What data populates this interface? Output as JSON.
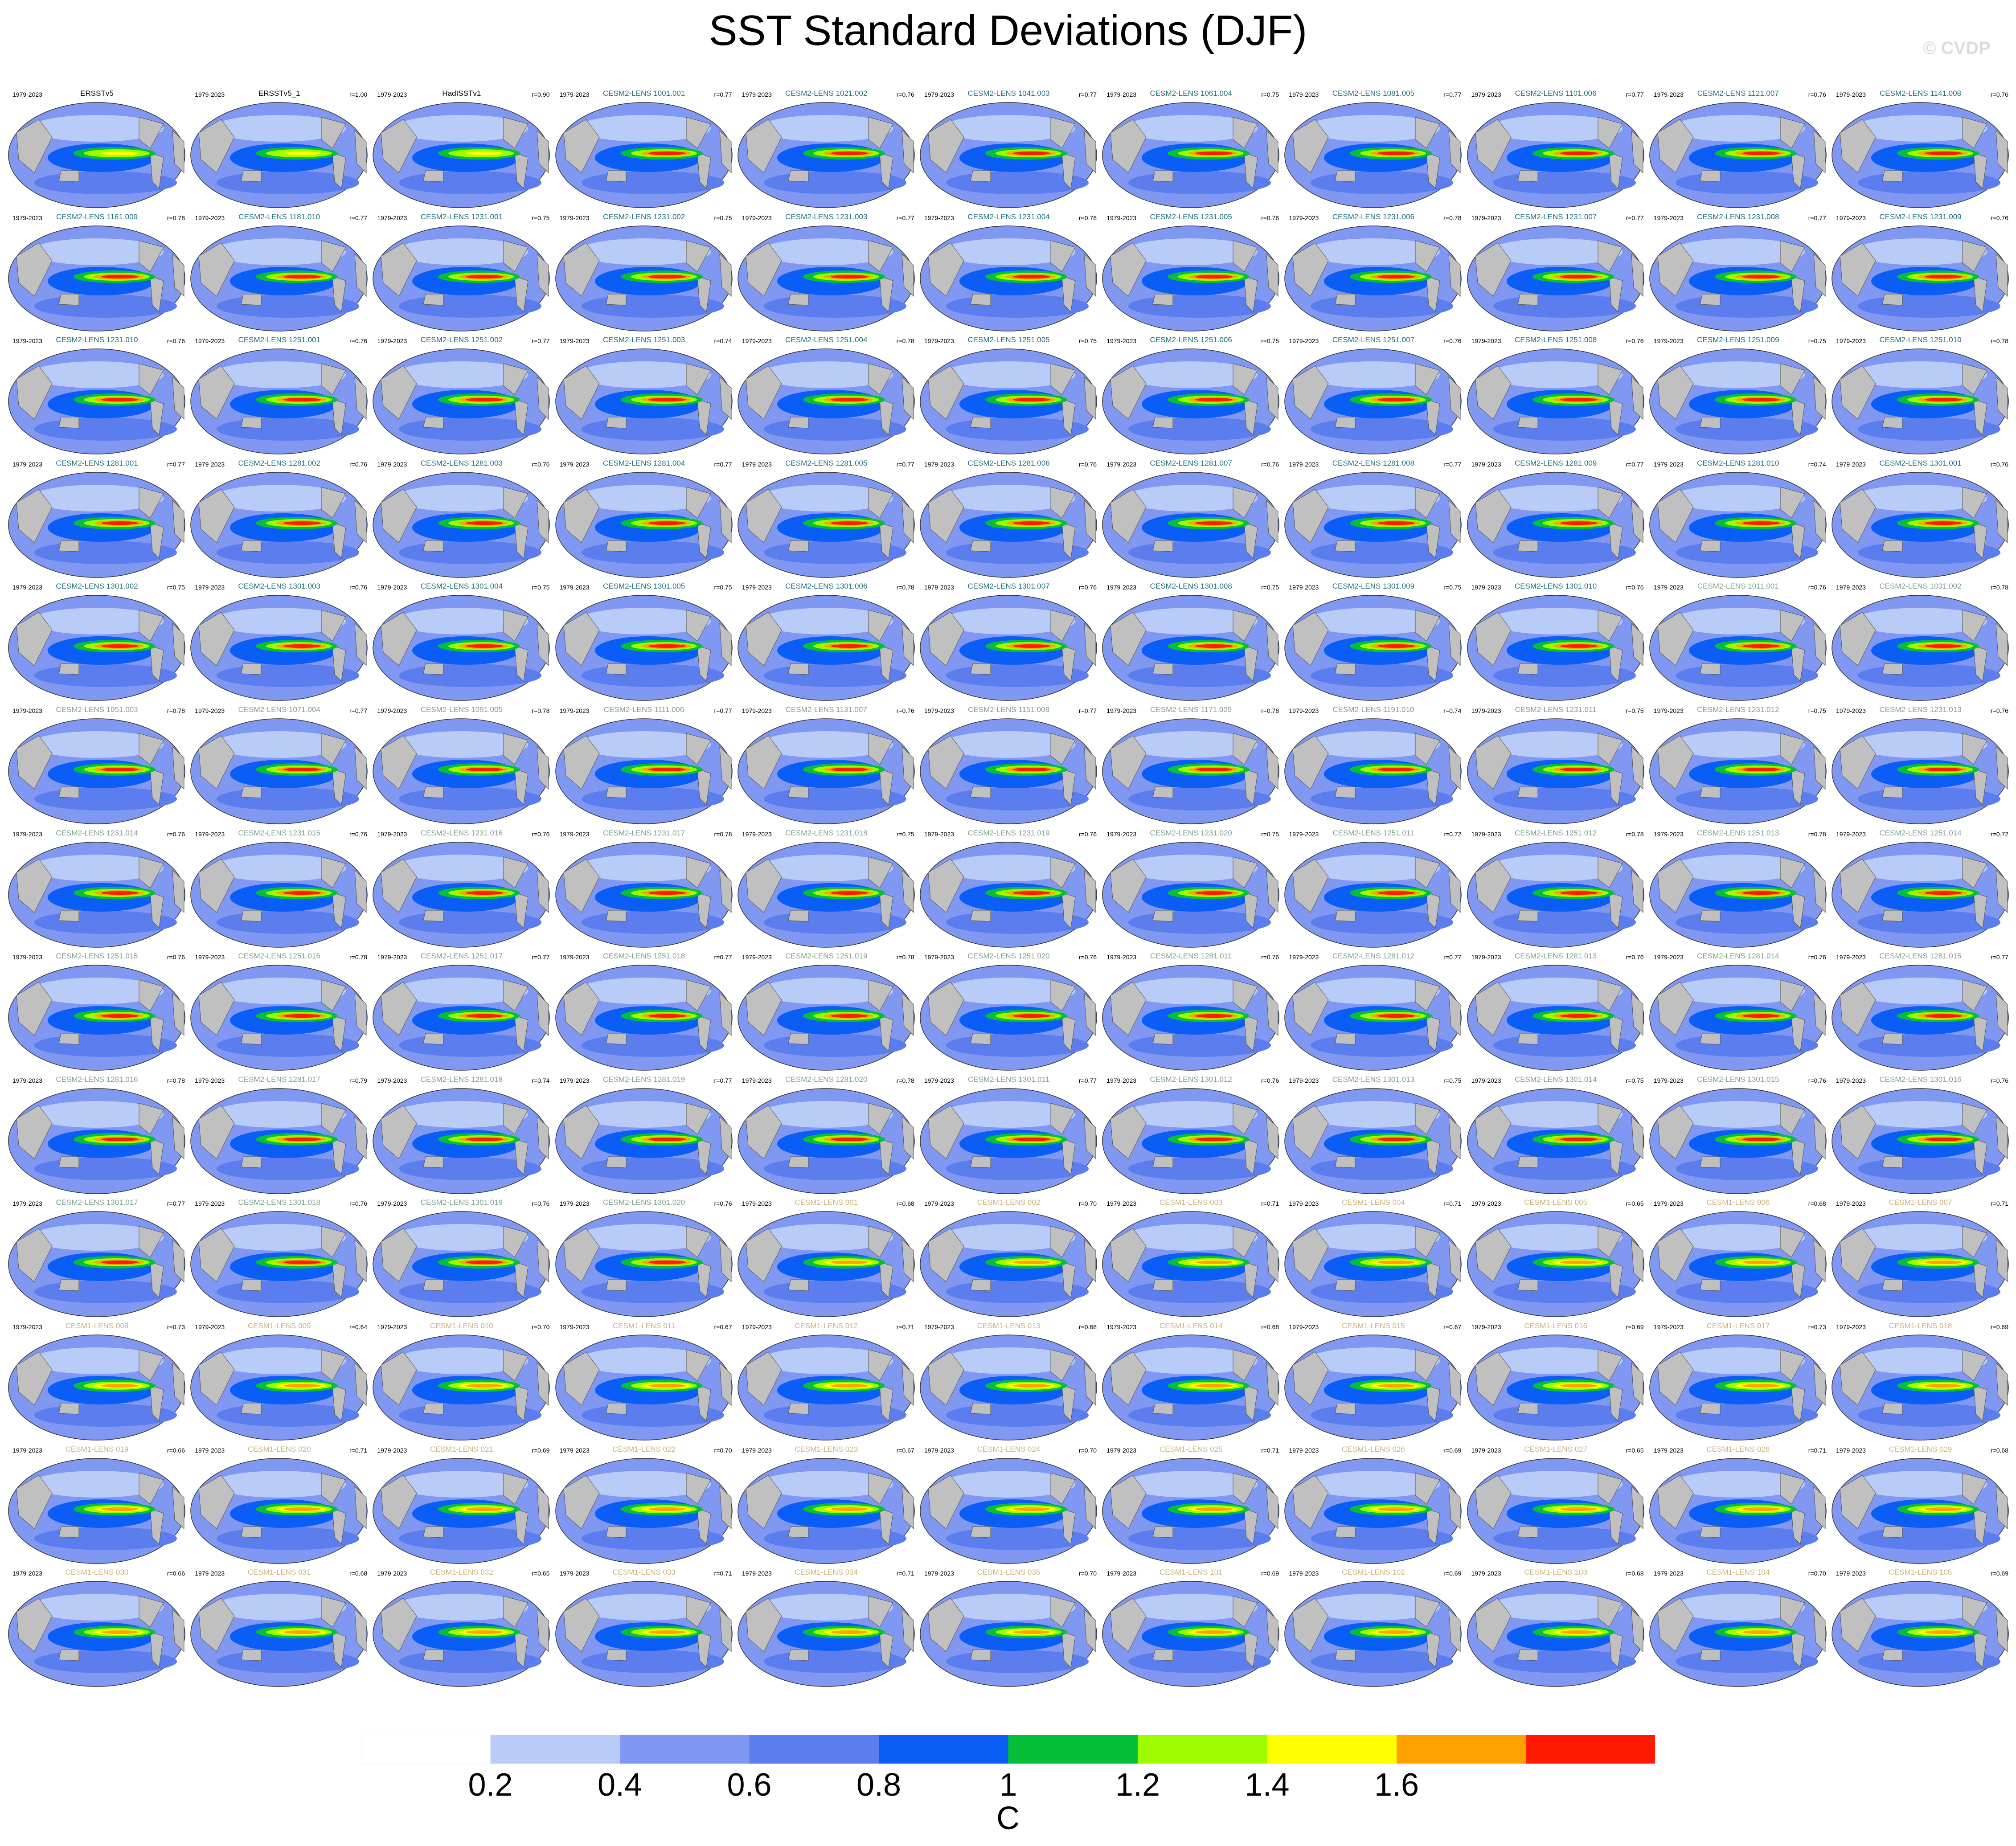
{
  "title": "SST Standard Deviations (DJF)",
  "watermark": "© CVDP",
  "units": "C",
  "colorbar": {
    "colors": [
      "#ffffff",
      "#b9cbf7",
      "#8198f3",
      "#5b7ded",
      "#0a5ef5",
      "#04bf37",
      "#9dfc00",
      "#ffff00",
      "#ffa200",
      "#ff1a00"
    ],
    "tick_labels": [
      "0.2",
      "0.4",
      "0.6",
      "0.8",
      "1",
      "1.2",
      "1.4",
      "1.6"
    ]
  },
  "colors": {
    "obs": "#000000",
    "cesm2": "#1f6f80",
    "cesm2_late": "#7fa08c",
    "cesm1": "#c8b27a",
    "land": "#c0c0c0"
  },
  "panels": [
    {
      "name": "ERSSTv5",
      "period": "1979-2023",
      "r": "",
      "group": "obs"
    },
    {
      "name": "ERSSTv5_1",
      "period": "1979-2023",
      "r": "r=1.00",
      "group": "obs"
    },
    {
      "name": "HadISSTv1",
      "period": "1979-2023",
      "r": "r=0.90",
      "group": "obs"
    },
    {
      "name": "CESM2-LENS 1001.001",
      "period": "1979-2023",
      "r": "r=0.77",
      "group": "cesm2"
    },
    {
      "name": "CESM2-LENS 1021.002",
      "period": "1979-2023",
      "r": "r=0.76",
      "group": "cesm2"
    },
    {
      "name": "CESM2-LENS 1041.003",
      "period": "1979-2023",
      "r": "r=0.77",
      "group": "cesm2"
    },
    {
      "name": "CESM2-LENS 1061.004",
      "period": "1979-2023",
      "r": "r=0.75",
      "group": "cesm2"
    },
    {
      "name": "CESM2-LENS 1081.005",
      "period": "1979-2023",
      "r": "r=0.77",
      "group": "cesm2"
    },
    {
      "name": "CESM2-LENS 1101.006",
      "period": "1979-2023",
      "r": "r=0.77",
      "group": "cesm2"
    },
    {
      "name": "CESM2-LENS 1121.007",
      "period": "1979-2023",
      "r": "r=0.76",
      "group": "cesm2"
    },
    {
      "name": "CESM2-LENS 1141.008",
      "period": "1979-2023",
      "r": "r=0.76",
      "group": "cesm2"
    },
    {
      "name": "CESM2-LENS 1161.009",
      "period": "1979-2023",
      "r": "r=0.78",
      "group": "cesm2"
    },
    {
      "name": "CESM2-LENS 1181.010",
      "period": "1979-2023",
      "r": "r=0.77",
      "group": "cesm2"
    },
    {
      "name": "CESM2-LENS 1231.001",
      "period": "1979-2023",
      "r": "r=0.75",
      "group": "cesm2"
    },
    {
      "name": "CESM2-LENS 1231.002",
      "period": "1979-2023",
      "r": "r=0.75",
      "group": "cesm2"
    },
    {
      "name": "CESM2-LENS 1231.003",
      "period": "1979-2023",
      "r": "r=0.77",
      "group": "cesm2"
    },
    {
      "name": "CESM2-LENS 1231.004",
      "period": "1979-2023",
      "r": "r=0.78",
      "group": "cesm2"
    },
    {
      "name": "CESM2-LENS 1231.005",
      "period": "1979-2023",
      "r": "r=0.76",
      "group": "cesm2"
    },
    {
      "name": "CESM2-LENS 1231.006",
      "period": "1979-2023",
      "r": "r=0.78",
      "group": "cesm2"
    },
    {
      "name": "CESM2-LENS 1231.007",
      "period": "1979-2023",
      "r": "r=0.77",
      "group": "cesm2"
    },
    {
      "name": "CESM2-LENS 1231.008",
      "period": "1979-2023",
      "r": "r=0.77",
      "group": "cesm2"
    },
    {
      "name": "CESM2-LENS 1231.009",
      "period": "1979-2023",
      "r": "r=0.76",
      "group": "cesm2"
    },
    {
      "name": "CESM2-LENS 1231.010",
      "period": "1979-2023",
      "r": "r=0.76",
      "group": "cesm2"
    },
    {
      "name": "CESM2-LENS 1251.001",
      "period": "1979-2023",
      "r": "r=0.76",
      "group": "cesm2"
    },
    {
      "name": "CESM2-LENS 1251.002",
      "period": "1979-2023",
      "r": "r=0.77",
      "group": "cesm2"
    },
    {
      "name": "CESM2-LENS 1251.003",
      "period": "1979-2023",
      "r": "r=0.74",
      "group": "cesm2"
    },
    {
      "name": "CESM2-LENS 1251.004",
      "period": "1979-2023",
      "r": "r=0.78",
      "group": "cesm2"
    },
    {
      "name": "CESM2-LENS 1251.005",
      "period": "1979-2023",
      "r": "r=0.75",
      "group": "cesm2"
    },
    {
      "name": "CESM2-LENS 1251.006",
      "period": "1979-2023",
      "r": "r=0.75",
      "group": "cesm2"
    },
    {
      "name": "CESM2-LENS 1251.007",
      "period": "1979-2023",
      "r": "r=0.76",
      "group": "cesm2"
    },
    {
      "name": "CESM2-LENS 1251.008",
      "period": "1979-2023",
      "r": "r=0.76",
      "group": "cesm2"
    },
    {
      "name": "CESM2-LENS 1251.009",
      "period": "1979-2023",
      "r": "r=0.75",
      "group": "cesm2"
    },
    {
      "name": "CESM2-LENS 1251.010",
      "period": "1979-2023",
      "r": "r=0.78",
      "group": "cesm2"
    },
    {
      "name": "CESM2-LENS 1281.001",
      "period": "1979-2023",
      "r": "r=0.77",
      "group": "cesm2"
    },
    {
      "name": "CESM2-LENS 1281.002",
      "period": "1979-2023",
      "r": "r=0.76",
      "group": "cesm2"
    },
    {
      "name": "CESM2-LENS 1281.003",
      "period": "1979-2023",
      "r": "r=0.76",
      "group": "cesm2"
    },
    {
      "name": "CESM2-LENS 1281.004",
      "period": "1979-2023",
      "r": "r=0.77",
      "group": "cesm2"
    },
    {
      "name": "CESM2-LENS 1281.005",
      "period": "1979-2023",
      "r": "r=0.77",
      "group": "cesm2"
    },
    {
      "name": "CESM2-LENS 1281.006",
      "period": "1979-2023",
      "r": "r=0.76",
      "group": "cesm2"
    },
    {
      "name": "CESM2-LENS 1281.007",
      "period": "1979-2023",
      "r": "r=0.76",
      "group": "cesm2"
    },
    {
      "name": "CESM2-LENS 1281.008",
      "period": "1979-2023",
      "r": "r=0.77",
      "group": "cesm2"
    },
    {
      "name": "CESM2-LENS 1281.009",
      "period": "1979-2023",
      "r": "r=0.77",
      "group": "cesm2"
    },
    {
      "name": "CESM2-LENS 1281.010",
      "period": "1979-2023",
      "r": "r=0.74",
      "group": "cesm2"
    },
    {
      "name": "CESM2-LENS 1301.001",
      "period": "1979-2023",
      "r": "r=0.76",
      "group": "cesm2"
    },
    {
      "name": "CESM2-LENS 1301.002",
      "period": "1979-2023",
      "r": "r=0.75",
      "group": "cesm2"
    },
    {
      "name": "CESM2-LENS 1301.003",
      "period": "1979-2023",
      "r": "r=0.76",
      "group": "cesm2"
    },
    {
      "name": "CESM2-LENS 1301.004",
      "period": "1979-2023",
      "r": "r=0.75",
      "group": "cesm2"
    },
    {
      "name": "CESM2-LENS 1301.005",
      "period": "1979-2023",
      "r": "r=0.75",
      "group": "cesm2"
    },
    {
      "name": "CESM2-LENS 1301.006",
      "period": "1979-2023",
      "r": "r=0.78",
      "group": "cesm2"
    },
    {
      "name": "CESM2-LENS 1301.007",
      "period": "1979-2023",
      "r": "r=0.76",
      "group": "cesm2"
    },
    {
      "name": "CESM2-LENS 1301.008",
      "period": "1979-2023",
      "r": "r=0.75",
      "group": "cesm2"
    },
    {
      "name": "CESM2-LENS 1301.009",
      "period": "1979-2023",
      "r": "r=0.75",
      "group": "cesm2"
    },
    {
      "name": "CESM2-LENS 1301.010",
      "period": "1979-2023",
      "r": "r=0.76",
      "group": "cesm2"
    },
    {
      "name": "CESM2-LENS 1011.001",
      "period": "1979-2023",
      "r": "r=0.76",
      "group": "cesm2_late"
    },
    {
      "name": "CESM2-LENS 1031.002",
      "period": "1979-2023",
      "r": "r=0.78",
      "group": "cesm2_late"
    },
    {
      "name": "CESM2-LENS 1051.003",
      "period": "1979-2023",
      "r": "r=0.78",
      "group": "cesm2_late"
    },
    {
      "name": "CESM2-LENS 1071.004",
      "period": "1979-2023",
      "r": "r=0.77",
      "group": "cesm2_late"
    },
    {
      "name": "CESM2-LENS 1091.005",
      "period": "1979-2023",
      "r": "r=0.78",
      "group": "cesm2_late"
    },
    {
      "name": "CESM2-LENS 1111.006",
      "period": "1979-2023",
      "r": "r=0.77",
      "group": "cesm2_late"
    },
    {
      "name": "CESM2-LENS 1131.007",
      "period": "1979-2023",
      "r": "r=0.76",
      "group": "cesm2_late"
    },
    {
      "name": "CESM2-LENS 1151.008",
      "period": "1979-2023",
      "r": "r=0.77",
      "group": "cesm2_late"
    },
    {
      "name": "CESM2-LENS 1171.009",
      "period": "1979-2023",
      "r": "r=0.78",
      "group": "cesm2_late"
    },
    {
      "name": "CESM2-LENS 1191.010",
      "period": "1979-2023",
      "r": "r=0.74",
      "group": "cesm2_late"
    },
    {
      "name": "CESM2-LENS 1231.011",
      "period": "1979-2023",
      "r": "r=0.75",
      "group": "cesm2_late"
    },
    {
      "name": "CESM2-LENS 1231.012",
      "period": "1979-2023",
      "r": "r=0.75",
      "group": "cesm2_late"
    },
    {
      "name": "CESM2-LENS 1231.013",
      "period": "1979-2023",
      "r": "r=0.76",
      "group": "cesm2_late"
    },
    {
      "name": "CESM2-LENS 1231.014",
      "period": "1979-2023",
      "r": "r=0.76",
      "group": "cesm2_late"
    },
    {
      "name": "CESM2-LENS 1231.015",
      "period": "1979-2023",
      "r": "r=0.76",
      "group": "cesm2_late"
    },
    {
      "name": "CESM2-LENS 1231.016",
      "period": "1979-2023",
      "r": "r=0.76",
      "group": "cesm2_late"
    },
    {
      "name": "CESM2-LENS 1231.017",
      "period": "1979-2023",
      "r": "r=0.78",
      "group": "cesm2_late"
    },
    {
      "name": "CESM2-LENS 1231.018",
      "period": "1979-2023",
      "r": "r=0.75",
      "group": "cesm2_late"
    },
    {
      "name": "CESM2-LENS 1231.019",
      "period": "1979-2023",
      "r": "r=0.76",
      "group": "cesm2_late"
    },
    {
      "name": "CESM2-LENS 1231.020",
      "period": "1979-2023",
      "r": "r=0.75",
      "group": "cesm2_late"
    },
    {
      "name": "CESM2-LENS 1251.011",
      "period": "1979-2023",
      "r": "r=0.72",
      "group": "cesm2_late"
    },
    {
      "name": "CESM2-LENS 1251.012",
      "period": "1979-2023",
      "r": "r=0.78",
      "group": "cesm2_late"
    },
    {
      "name": "CESM2-LENS 1251.013",
      "period": "1979-2023",
      "r": "r=0.78",
      "group": "cesm2_late"
    },
    {
      "name": "CESM2-LENS 1251.014",
      "period": "1979-2023",
      "r": "r=0.72",
      "group": "cesm2_late"
    },
    {
      "name": "CESM2-LENS 1251.015",
      "period": "1979-2023",
      "r": "r=0.76",
      "group": "cesm2_late"
    },
    {
      "name": "CESM2-LENS 1251.016",
      "period": "1979-2023",
      "r": "r=0.78",
      "group": "cesm2_late"
    },
    {
      "name": "CESM2-LENS 1251.017",
      "period": "1979-2023",
      "r": "r=0.77",
      "group": "cesm2_late"
    },
    {
      "name": "CESM2-LENS 1251.018",
      "period": "1979-2023",
      "r": "r=0.77",
      "group": "cesm2_late"
    },
    {
      "name": "CESM2-LENS 1251.019",
      "period": "1979-2023",
      "r": "r=0.78",
      "group": "cesm2_late"
    },
    {
      "name": "CESM2-LENS 1251.020",
      "period": "1979-2023",
      "r": "r=0.76",
      "group": "cesm2_late"
    },
    {
      "name": "CESM2-LENS 1281.011",
      "period": "1979-2023",
      "r": "r=0.76",
      "group": "cesm2_late"
    },
    {
      "name": "CESM2-LENS 1281.012",
      "period": "1979-2023",
      "r": "r=0.77",
      "group": "cesm2_late"
    },
    {
      "name": "CESM2-LENS 1281.013",
      "period": "1979-2023",
      "r": "r=0.76",
      "group": "cesm2_late"
    },
    {
      "name": "CESM2-LENS 1281.014",
      "period": "1979-2023",
      "r": "r=0.76",
      "group": "cesm2_late"
    },
    {
      "name": "CESM2-LENS 1281.015",
      "period": "1979-2023",
      "r": "r=0.77",
      "group": "cesm2_late"
    },
    {
      "name": "CESM2-LENS 1281.016",
      "period": "1979-2023",
      "r": "r=0.78",
      "group": "cesm2_late"
    },
    {
      "name": "CESM2-LENS 1281.017",
      "period": "1979-2023",
      "r": "r=0.79",
      "group": "cesm2_late"
    },
    {
      "name": "CESM2-LENS 1281.018",
      "period": "1979-2023",
      "r": "r=0.74",
      "group": "cesm2_late"
    },
    {
      "name": "CESM2-LENS 1281.019",
      "period": "1979-2023",
      "r": "r=0.77",
      "group": "cesm2_late"
    },
    {
      "name": "CESM2-LENS 1281.020",
      "period": "1979-2023",
      "r": "r=0.78",
      "group": "cesm2_late"
    },
    {
      "name": "CESM2-LENS 1301.011",
      "period": "1979-2023",
      "r": "r=0.77",
      "group": "cesm2_late"
    },
    {
      "name": "CESM2-LENS 1301.012",
      "period": "1979-2023",
      "r": "r=0.76",
      "group": "cesm2_late"
    },
    {
      "name": "CESM2-LENS 1301.013",
      "period": "1979-2023",
      "r": "r=0.75",
      "group": "cesm2_late"
    },
    {
      "name": "CESM2-LENS 1301.014",
      "period": "1979-2023",
      "r": "r=0.75",
      "group": "cesm2_late"
    },
    {
      "name": "CESM2-LENS 1301.015",
      "period": "1979-2023",
      "r": "r=0.76",
      "group": "cesm2_late"
    },
    {
      "name": "CESM2-LENS 1301.016",
      "period": "1979-2023",
      "r": "r=0.76",
      "group": "cesm2_late"
    },
    {
      "name": "CESM2-LENS 1301.017",
      "period": "1979-2023",
      "r": "r=0.77",
      "group": "cesm2_late"
    },
    {
      "name": "CESM2-LENS 1301.018",
      "period": "1979-2023",
      "r": "r=0.76",
      "group": "cesm2_late"
    },
    {
      "name": "CESM2-LENS 1301.019",
      "period": "1979-2023",
      "r": "r=0.76",
      "group": "cesm2_late"
    },
    {
      "name": "CESM2-LENS 1301.020",
      "period": "1979-2023",
      "r": "r=0.76",
      "group": "cesm2_late"
    },
    {
      "name": "CESM1-LENS 001",
      "period": "1979-2023",
      "r": "r=0.68",
      "group": "cesm1"
    },
    {
      "name": "CESM1-LENS 002",
      "period": "1979-2023",
      "r": "r=0.70",
      "group": "cesm1"
    },
    {
      "name": "CESM1-LENS 003",
      "period": "1979-2023",
      "r": "r=0.71",
      "group": "cesm1"
    },
    {
      "name": "CESM1-LENS 004",
      "period": "1979-2023",
      "r": "r=0.71",
      "group": "cesm1"
    },
    {
      "name": "CESM1-LENS 005",
      "period": "1979-2023",
      "r": "r=0.65",
      "group": "cesm1"
    },
    {
      "name": "CESM1-LENS 006",
      "period": "1979-2023",
      "r": "r=0.68",
      "group": "cesm1"
    },
    {
      "name": "CESM1-LENS 007",
      "period": "1979-2023",
      "r": "r=0.71",
      "group": "cesm1"
    },
    {
      "name": "CESM1-LENS 008",
      "period": "1979-2023",
      "r": "r=0.73",
      "group": "cesm1"
    },
    {
      "name": "CESM1-LENS 009",
      "period": "1979-2023",
      "r": "r=0.64",
      "group": "cesm1"
    },
    {
      "name": "CESM1-LENS 010",
      "period": "1979-2023",
      "r": "r=0.70",
      "group": "cesm1"
    },
    {
      "name": "CESM1-LENS 011",
      "period": "1979-2023",
      "r": "r=0.67",
      "group": "cesm1"
    },
    {
      "name": "CESM1-LENS 012",
      "period": "1979-2023",
      "r": "r=0.71",
      "group": "cesm1"
    },
    {
      "name": "CESM1-LENS 013",
      "period": "1979-2023",
      "r": "r=0.68",
      "group": "cesm1"
    },
    {
      "name": "CESM1-LENS 014",
      "period": "1979-2023",
      "r": "r=0.68",
      "group": "cesm1"
    },
    {
      "name": "CESM1-LENS 015",
      "period": "1979-2023",
      "r": "r=0.67",
      "group": "cesm1"
    },
    {
      "name": "CESM1-LENS 016",
      "period": "1979-2023",
      "r": "r=0.69",
      "group": "cesm1"
    },
    {
      "name": "CESM1-LENS 017",
      "period": "1979-2023",
      "r": "r=0.73",
      "group": "cesm1"
    },
    {
      "name": "CESM1-LENS 018",
      "period": "1979-2023",
      "r": "r=0.69",
      "group": "cesm1"
    },
    {
      "name": "CESM1-LENS 019",
      "period": "1979-2023",
      "r": "r=0.66",
      "group": "cesm1"
    },
    {
      "name": "CESM1-LENS 020",
      "period": "1979-2023",
      "r": "r=0.71",
      "group": "cesm1"
    },
    {
      "name": "CESM1-LENS 021",
      "period": "1979-2023",
      "r": "r=0.69",
      "group": "cesm1"
    },
    {
      "name": "CESM1-LENS 022",
      "period": "1979-2023",
      "r": "r=0.70",
      "group": "cesm1"
    },
    {
      "name": "CESM1-LENS 023",
      "period": "1979-2023",
      "r": "r=0.67",
      "group": "cesm1"
    },
    {
      "name": "CESM1-LENS 024",
      "period": "1979-2023",
      "r": "r=0.70",
      "group": "cesm1"
    },
    {
      "name": "CESM1-LENS 025",
      "period": "1979-2023",
      "r": "r=0.71",
      "group": "cesm1"
    },
    {
      "name": "CESM1-LENS 026",
      "period": "1979-2023",
      "r": "r=0.69",
      "group": "cesm1"
    },
    {
      "name": "CESM1-LENS 027",
      "period": "1979-2023",
      "r": "r=0.65",
      "group": "cesm1"
    },
    {
      "name": "CESM1-LENS 028",
      "period": "1979-2023",
      "r": "r=0.71",
      "group": "cesm1"
    },
    {
      "name": "CESM1-LENS 029",
      "period": "1979-2023",
      "r": "r=0.68",
      "group": "cesm1"
    },
    {
      "name": "CESM1-LENS 030",
      "period": "1979-2023",
      "r": "r=0.66",
      "group": "cesm1"
    },
    {
      "name": "CESM1-LENS 031",
      "period": "1979-2023",
      "r": "r=0.68",
      "group": "cesm1"
    },
    {
      "name": "CESM1-LENS 032",
      "period": "1979-2023",
      "r": "r=0.65",
      "group": "cesm1"
    },
    {
      "name": "CESM1-LENS 033",
      "period": "1979-2023",
      "r": "r=0.71",
      "group": "cesm1"
    },
    {
      "name": "CESM1-LENS 034",
      "period": "1979-2023",
      "r": "r=0.71",
      "group": "cesm1"
    },
    {
      "name": "CESM1-LENS 035",
      "period": "1979-2023",
      "r": "r=0.70",
      "group": "cesm1"
    },
    {
      "name": "CESM1-LENS 101",
      "period": "1979-2023",
      "r": "r=0.69",
      "group": "cesm1"
    },
    {
      "name": "CESM1-LENS 102",
      "period": "1979-2023",
      "r": "r=0.69",
      "group": "cesm1"
    },
    {
      "name": "CESM1-LENS 103",
      "period": "1979-2023",
      "r": "r=0.68",
      "group": "cesm1"
    },
    {
      "name": "CESM1-LENS 104",
      "period": "1979-2023",
      "r": "r=0.70",
      "group": "cesm1"
    },
    {
      "name": "CESM1-LENS 105",
      "period": "1979-2023",
      "r": "r=0.69",
      "group": "cesm1"
    }
  ]
}
